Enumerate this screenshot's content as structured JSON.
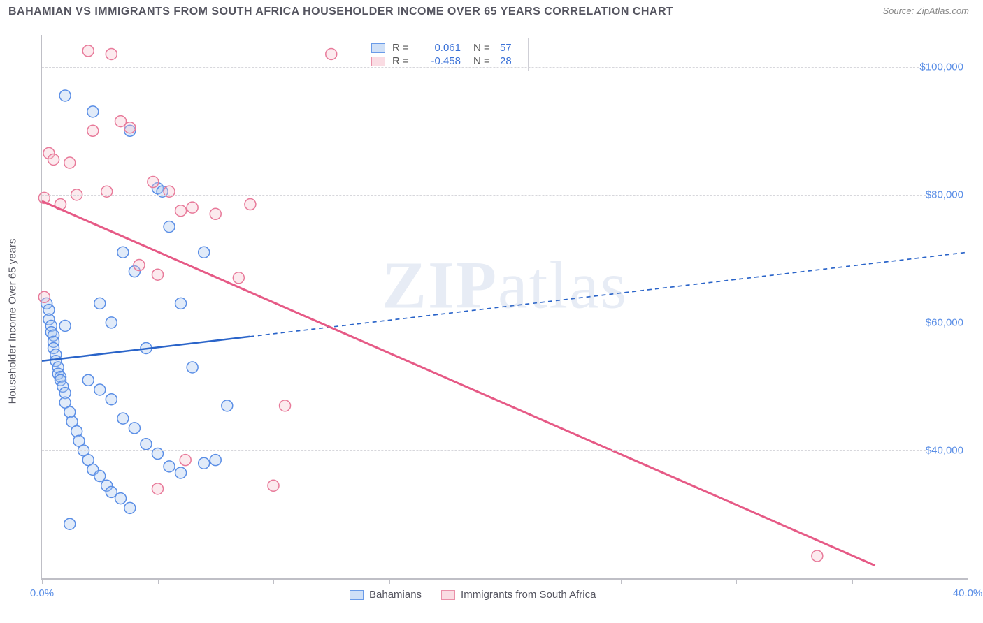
{
  "title": "BAHAMIAN VS IMMIGRANTS FROM SOUTH AFRICA HOUSEHOLDER INCOME OVER 65 YEARS CORRELATION CHART",
  "source_label": "Source: ZipAtlas.com",
  "y_axis_label": "Householder Income Over 65 years",
  "watermark_a": "ZIP",
  "watermark_b": "atlas",
  "chart": {
    "type": "scatter",
    "background_color": "#ffffff",
    "grid_color": "#d7d7dc",
    "axis_color": "#bfbfc6",
    "tick_label_color": "#5a8ee6",
    "text_color": "#555560",
    "xlim": [
      0,
      40
    ],
    "ylim": [
      20000,
      105000
    ],
    "x_tick_positions": [
      0,
      5,
      10,
      15,
      20,
      25,
      30,
      35,
      40
    ],
    "x_tick_labels": {
      "0": "0.0%",
      "40": "40.0%"
    },
    "y_tick_positions": [
      40000,
      60000,
      80000,
      100000
    ],
    "y_tick_labels": {
      "40000": "$40,000",
      "60000": "$60,000",
      "80000": "$80,000",
      "100000": "$100,000"
    },
    "marker_radius": 8,
    "marker_fill_opacity": 0.35,
    "marker_stroke_width": 1.5,
    "series": [
      {
        "name": "Bahamians",
        "color_fill": "#a9c7ef",
        "color_stroke": "#5a8ee6",
        "legend_swatch_fill": "#cfe0f7",
        "legend_swatch_stroke": "#6a9be8",
        "r_label": "R =",
        "r_value": "0.061",
        "n_label": "N =",
        "n_value": "57",
        "trend": {
          "x1": 0,
          "y1": 54000,
          "x2": 40,
          "y2": 71000,
          "solid_until_x": 9,
          "color": "#2a64c9",
          "width": 2.5,
          "dash": "6 5"
        },
        "points": [
          [
            0.2,
            63000
          ],
          [
            0.3,
            62000
          ],
          [
            0.3,
            60500
          ],
          [
            0.4,
            59500
          ],
          [
            0.4,
            58500
          ],
          [
            0.5,
            58000
          ],
          [
            0.5,
            57000
          ],
          [
            0.5,
            56000
          ],
          [
            0.6,
            55000
          ],
          [
            0.6,
            54000
          ],
          [
            0.7,
            53000
          ],
          [
            0.7,
            52000
          ],
          [
            0.8,
            51500
          ],
          [
            0.8,
            51000
          ],
          [
            0.9,
            50000
          ],
          [
            1.0,
            49000
          ],
          [
            1.0,
            47500
          ],
          [
            1.2,
            46000
          ],
          [
            1.3,
            44500
          ],
          [
            1.5,
            43000
          ],
          [
            1.6,
            41500
          ],
          [
            1.8,
            40000
          ],
          [
            2.0,
            38500
          ],
          [
            2.2,
            37000
          ],
          [
            2.5,
            36000
          ],
          [
            2.8,
            34500
          ],
          [
            3.0,
            33500
          ],
          [
            3.4,
            32500
          ],
          [
            1.0,
            95500
          ],
          [
            2.2,
            93000
          ],
          [
            3.8,
            90000
          ],
          [
            2.5,
            63000
          ],
          [
            3.0,
            60000
          ],
          [
            3.5,
            71000
          ],
          [
            4.0,
            68000
          ],
          [
            4.5,
            56000
          ],
          [
            5.0,
            81000
          ],
          [
            5.2,
            80500
          ],
          [
            5.5,
            75000
          ],
          [
            6.0,
            63000
          ],
          [
            6.5,
            53000
          ],
          [
            7.0,
            71000
          ],
          [
            7.0,
            38000
          ],
          [
            7.5,
            38500
          ],
          [
            8.0,
            47000
          ],
          [
            2.0,
            51000
          ],
          [
            2.5,
            49500
          ],
          [
            3.0,
            48000
          ],
          [
            3.5,
            45000
          ],
          [
            4.0,
            43500
          ],
          [
            4.5,
            41000
          ],
          [
            5.0,
            39500
          ],
          [
            5.5,
            37500
          ],
          [
            6.0,
            36500
          ],
          [
            1.2,
            28500
          ],
          [
            3.8,
            31000
          ],
          [
            1.0,
            59500
          ]
        ]
      },
      {
        "name": "Immigrants from South Africa",
        "color_fill": "#f5c2ce",
        "color_stroke": "#e87a9a",
        "legend_swatch_fill": "#fadce3",
        "legend_swatch_stroke": "#ea90a9",
        "r_label": "R =",
        "r_value": "-0.458",
        "n_label": "N =",
        "n_value": "28",
        "trend": {
          "x1": 0,
          "y1": 79000,
          "x2": 36,
          "y2": 22000,
          "solid_until_x": 36,
          "color": "#e65a86",
          "width": 3,
          "dash": ""
        },
        "points": [
          [
            0.1,
            64000
          ],
          [
            0.3,
            86500
          ],
          [
            0.5,
            85500
          ],
          [
            0.8,
            78500
          ],
          [
            1.2,
            85000
          ],
          [
            1.5,
            80000
          ],
          [
            2.0,
            102500
          ],
          [
            2.2,
            90000
          ],
          [
            2.8,
            80500
          ],
          [
            3.0,
            102000
          ],
          [
            3.4,
            91500
          ],
          [
            3.8,
            90500
          ],
          [
            4.2,
            69000
          ],
          [
            4.8,
            82000
          ],
          [
            5.0,
            67500
          ],
          [
            5.5,
            80500
          ],
          [
            6.0,
            77500
          ],
          [
            6.5,
            78000
          ],
          [
            7.5,
            77000
          ],
          [
            8.5,
            67000
          ],
          [
            9.0,
            78500
          ],
          [
            12.5,
            102000
          ],
          [
            10.5,
            47000
          ],
          [
            10.0,
            34500
          ],
          [
            5.0,
            34000
          ],
          [
            6.2,
            38500
          ],
          [
            33.5,
            23500
          ],
          [
            0.1,
            79500
          ]
        ]
      }
    ]
  }
}
